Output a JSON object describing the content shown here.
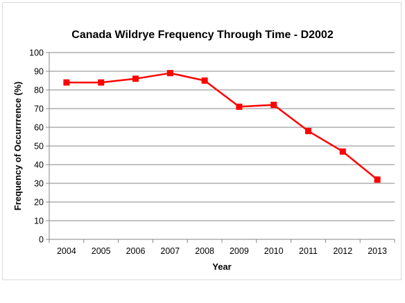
{
  "colors": {
    "series": "#ff0000",
    "gridline": "#868686",
    "axis": "#868686",
    "frame_border": "#d9d9d9"
  },
  "chart_data": {
    "type": "line",
    "title": "Canada Wildrye Frequency Through Time - D2002",
    "xlabel": "Year",
    "ylabel": "Frequency of Occurrrence (%)",
    "categories": [
      "2004",
      "2005",
      "2006",
      "2007",
      "2008",
      "2009",
      "2010",
      "2011",
      "2012",
      "2013"
    ],
    "series": [
      {
        "values": [
          84,
          84,
          86,
          89,
          85,
          71,
          72,
          58,
          47,
          32
        ],
        "marker": "square",
        "color": "#ff0000"
      }
    ],
    "ylim": [
      0,
      100
    ],
    "yticks": [
      0,
      10,
      20,
      30,
      40,
      50,
      60,
      70,
      80,
      90,
      100
    ],
    "grid": "horizontal",
    "legend": "none"
  }
}
